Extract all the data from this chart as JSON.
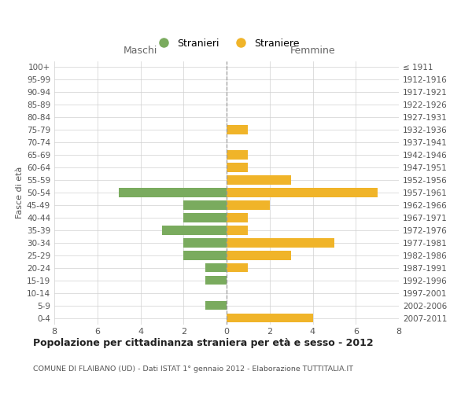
{
  "age_groups": [
    "100+",
    "95-99",
    "90-94",
    "85-89",
    "80-84",
    "75-79",
    "70-74",
    "65-69",
    "60-64",
    "55-59",
    "50-54",
    "45-49",
    "40-44",
    "35-39",
    "30-34",
    "25-29",
    "20-24",
    "15-19",
    "10-14",
    "5-9",
    "0-4"
  ],
  "birth_years": [
    "≤ 1911",
    "1912-1916",
    "1917-1921",
    "1922-1926",
    "1927-1931",
    "1932-1936",
    "1937-1941",
    "1942-1946",
    "1947-1951",
    "1952-1956",
    "1957-1961",
    "1962-1966",
    "1967-1971",
    "1972-1976",
    "1977-1981",
    "1982-1986",
    "1987-1991",
    "1992-1996",
    "1997-2001",
    "2002-2006",
    "2007-2011"
  ],
  "maschi": [
    0,
    0,
    0,
    0,
    0,
    0,
    0,
    0,
    0,
    0,
    5,
    2,
    2,
    3,
    2,
    2,
    1,
    1,
    0,
    1,
    0
  ],
  "femmine": [
    0,
    0,
    0,
    0,
    0,
    1,
    0,
    1,
    1,
    3,
    7,
    2,
    1,
    1,
    5,
    3,
    1,
    0,
    0,
    0,
    4
  ],
  "maschi_color": "#7aab5e",
  "femmine_color": "#f0b429",
  "title": "Popolazione per cittadinanza straniera per età e sesso - 2012",
  "subtitle": "COMUNE DI FLAIBANO (UD) - Dati ISTAT 1° gennaio 2012 - Elaborazione TUTTITALIA.IT",
  "ylabel_left": "Fasce di età",
  "xlabel_left": "Maschi",
  "xlabel_right": "Femmine",
  "legend_stranieri": "Stranieri",
  "legend_straniere": "Straniere",
  "xlim": 8,
  "background_color": "#ffffff",
  "grid_color": "#d0d0d0"
}
